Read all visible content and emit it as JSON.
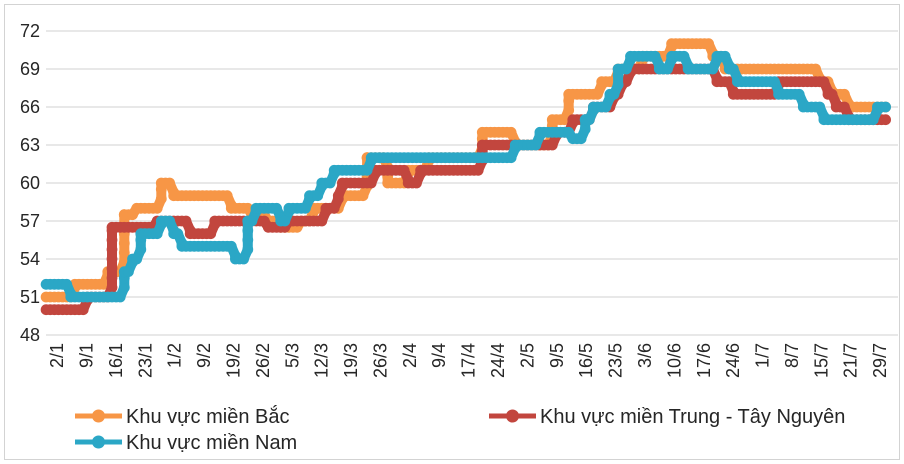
{
  "frame": {
    "border_color": "#D3D3D3",
    "background": "#FFFFFF",
    "gridline_color": "#D9D9D9",
    "text_color": "#262626"
  },
  "chart_data": {
    "type": "line",
    "title": "",
    "xlabel": "",
    "ylabel": "",
    "grid": true,
    "legend_position": "bottom",
    "marker_style": "filled-circle",
    "y_axis": {
      "min": 48,
      "max": 72,
      "ticks": [
        48,
        51,
        54,
        57,
        60,
        63,
        66,
        69,
        72
      ]
    },
    "x_labels": [
      "2/1",
      "9/1",
      "16/1",
      "23/1",
      "1/2",
      "9/2",
      "19/2",
      "26/2",
      "5/3",
      "12/3",
      "19/3",
      "26/3",
      "2/4",
      "9/4",
      "17/4",
      "24/4",
      "2/5",
      "9/5",
      "16/5",
      "23/5",
      "3/6",
      "10/6",
      "17/6",
      "24/6",
      "1/7",
      "8/7",
      "15/7",
      "21/7",
      "29/7"
    ],
    "x_unit": "date dd/mm (daily price points, ticks at labeled dates, index 0-28)",
    "x_start": -0.37,
    "x_end": 28.2,
    "series": [
      {
        "name": "Khu vực miền Bắc",
        "color": "#F79646",
        "steps": [
          [
            -0.37,
            51
          ],
          [
            0.54,
            52
          ],
          [
            1.63,
            53
          ],
          [
            2.21,
            57.5
          ],
          [
            2.59,
            58
          ],
          [
            3.44,
            60
          ],
          [
            3.88,
            59
          ],
          [
            5.82,
            58
          ],
          [
            6.6,
            57.5
          ],
          [
            7.12,
            57
          ],
          [
            7.59,
            56.5
          ],
          [
            8.27,
            57
          ],
          [
            8.71,
            58
          ],
          [
            9.63,
            59
          ],
          [
            10.54,
            62
          ],
          [
            11.19,
            60
          ],
          [
            11.94,
            61
          ],
          [
            12.55,
            62
          ],
          [
            14.46,
            64
          ],
          [
            15.54,
            63
          ],
          [
            16.84,
            65
          ],
          [
            17.31,
            67
          ],
          [
            18.47,
            68
          ],
          [
            19.05,
            69
          ],
          [
            19.86,
            70
          ],
          [
            20.82,
            71
          ],
          [
            22.31,
            70
          ],
          [
            22.69,
            69
          ],
          [
            25.95,
            68
          ],
          [
            26.29,
            67
          ],
          [
            26.84,
            66
          ]
        ]
      },
      {
        "name": "Khu vực miền Trung - Tây Nguyên",
        "color": "#C2463E",
        "steps": [
          [
            -0.37,
            50
          ],
          [
            0.95,
            51
          ],
          [
            1.8,
            56.5
          ],
          [
            3.4,
            57
          ],
          [
            4.46,
            56
          ],
          [
            5.35,
            57
          ],
          [
            7.18,
            56.5
          ],
          [
            7.86,
            57
          ],
          [
            9.05,
            58
          ],
          [
            9.46,
            59
          ],
          [
            9.69,
            60
          ],
          [
            10.82,
            61
          ],
          [
            11.94,
            60
          ],
          [
            12.35,
            61
          ],
          [
            14.46,
            63
          ],
          [
            16.87,
            64
          ],
          [
            17.52,
            65
          ],
          [
            18.13,
            66
          ],
          [
            18.88,
            67
          ],
          [
            19.22,
            68
          ],
          [
            19.42,
            69
          ],
          [
            22.45,
            68
          ],
          [
            22.99,
            67
          ],
          [
            24.42,
            68
          ],
          [
            26.19,
            67
          ],
          [
            26.5,
            66
          ],
          [
            26.9,
            65
          ]
        ]
      },
      {
        "name": "Khu vực miền Nam",
        "color": "#2BA7C6",
        "steps": [
          [
            -0.37,
            52
          ],
          [
            0.34,
            51
          ],
          [
            2.21,
            53
          ],
          [
            2.55,
            54
          ],
          [
            2.82,
            56
          ],
          [
            3.44,
            57
          ],
          [
            3.91,
            56
          ],
          [
            4.25,
            55
          ],
          [
            5.95,
            54
          ],
          [
            6.42,
            57
          ],
          [
            6.7,
            58
          ],
          [
            7.52,
            57
          ],
          [
            7.86,
            58
          ],
          [
            8.54,
            59
          ],
          [
            8.95,
            60
          ],
          [
            9.39,
            61
          ],
          [
            10.65,
            62
          ],
          [
            15.58,
            63
          ],
          [
            16.36,
            64
          ],
          [
            17.45,
            63.5
          ],
          [
            17.93,
            65
          ],
          [
            18.13,
            66
          ],
          [
            18.71,
            67
          ],
          [
            19.05,
            69
          ],
          [
            19.39,
            70
          ],
          [
            20.44,
            69
          ],
          [
            20.82,
            70
          ],
          [
            21.46,
            69
          ],
          [
            22.35,
            70
          ],
          [
            22.82,
            69
          ],
          [
            23.13,
            68
          ],
          [
            24.42,
            67
          ],
          [
            25.27,
            66
          ],
          [
            26.02,
            65
          ],
          [
            27.79,
            66
          ]
        ]
      }
    ]
  },
  "legend": {
    "items": [
      {
        "label": "Khu vực miền Bắc",
        "series": 0,
        "row": 0,
        "col": 0
      },
      {
        "label": "Khu vực miền Trung - Tây Nguyên",
        "series": 1,
        "row": 0,
        "col": 1
      },
      {
        "label": "Khu vực miền Nam",
        "series": 2,
        "row": 1,
        "col": 0
      }
    ]
  }
}
